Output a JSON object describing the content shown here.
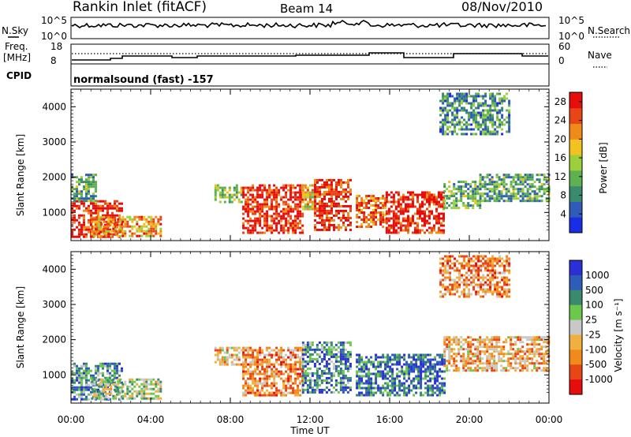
{
  "header": {
    "station": "Rankin Inlet (fitACF)",
    "beam": "Beam 14",
    "date": "08/Nov/2010"
  },
  "noise_panel": {
    "left_label": "N.Sky",
    "right_label": "N.Search",
    "left_ticks": [
      "10^5",
      "10^0"
    ],
    "right_ticks": [
      "10^5",
      "10^0"
    ]
  },
  "freq_panel": {
    "left_label_1": "Freq.",
    "left_label_2": "[MHz]",
    "right_label": "Nave",
    "left_ticks": [
      "18",
      "8"
    ],
    "right_ticks": [
      "60",
      "0"
    ],
    "cpid_label": "CPID",
    "cpid_text": "normalsound (fast) -157"
  },
  "colors": {
    "power_scale": [
      "#1a2de6",
      "#2f5cb8",
      "#3a8a6e",
      "#5fb04f",
      "#9bd03a",
      "#f2c21e",
      "#f08a1a",
      "#e84616",
      "#e60d0d"
    ],
    "velocity_scale": [
      "#2a2fd6",
      "#2f5cb8",
      "#3a8a6e",
      "#6cc84a",
      "#c8c8c8",
      "#f0b040",
      "#f08a1a",
      "#e84616",
      "#e60d0d"
    ]
  },
  "chart_data": [
    {
      "type": "heatmap",
      "name_label": "power",
      "ylabel": "Slant Range [km]",
      "xlabel": "",
      "y_ticks": [
        "1000",
        "2000",
        "3000",
        "4000"
      ],
      "y_tick_values": [
        1000,
        2000,
        3000,
        4000
      ],
      "ylim": [
        200,
        4500
      ],
      "x_ticks": [
        "00:00",
        "04:00",
        "08:00",
        "12:00",
        "16:00",
        "20:00",
        "00:00"
      ],
      "x_tick_values": [
        0,
        4,
        8,
        12,
        16,
        20,
        24
      ],
      "xlim": [
        0,
        24
      ],
      "colorbar": {
        "label": "Power [dB]",
        "ticks": [
          "4",
          "8",
          "12",
          "16",
          "20",
          "24",
          "28"
        ],
        "tick_values": [
          4,
          8,
          12,
          16,
          20,
          24,
          28
        ],
        "range": [
          0,
          30
        ]
      },
      "regions": [
        {
          "t0": 0.0,
          "t1": 2.6,
          "r0": 300,
          "r1": 1350,
          "level": 0.9
        },
        {
          "t0": 0.0,
          "t1": 1.2,
          "r0": 1300,
          "r1": 2100,
          "level": 0.35
        },
        {
          "t0": 1.0,
          "t1": 4.5,
          "r0": 300,
          "r1": 900,
          "level": 0.7
        },
        {
          "t0": 7.2,
          "t1": 8.6,
          "r0": 1300,
          "r1": 1800,
          "level": 0.45
        },
        {
          "t0": 8.6,
          "t1": 11.6,
          "r0": 400,
          "r1": 1800,
          "level": 0.92
        },
        {
          "t0": 11.6,
          "t1": 12.2,
          "r0": 1100,
          "r1": 1800,
          "level": 0.6
        },
        {
          "t0": 12.2,
          "t1": 14.0,
          "r0": 500,
          "r1": 1950,
          "level": 0.9
        },
        {
          "t0": 14.3,
          "t1": 15.8,
          "r0": 600,
          "r1": 1500,
          "level": 0.8
        },
        {
          "t0": 15.8,
          "t1": 18.7,
          "r0": 400,
          "r1": 1600,
          "level": 0.95
        },
        {
          "t0": 18.7,
          "t1": 20.5,
          "r0": 1100,
          "r1": 1900,
          "level": 0.4
        },
        {
          "t0": 20.5,
          "t1": 24.0,
          "r0": 1300,
          "r1": 2100,
          "level": 0.35
        },
        {
          "t0": 18.5,
          "t1": 22.0,
          "r0": 3200,
          "r1": 4400,
          "level": 0.3
        }
      ]
    },
    {
      "type": "heatmap",
      "name_label": "velocity",
      "ylabel": "Slant Range [km]",
      "xlabel": "Time UT",
      "y_ticks": [
        "1000",
        "2000",
        "3000",
        "4000"
      ],
      "y_tick_values": [
        1000,
        2000,
        3000,
        4000
      ],
      "ylim": [
        200,
        4500
      ],
      "x_ticks": [
        "00:00",
        "04:00",
        "08:00",
        "12:00",
        "16:00",
        "20:00",
        "00:00"
      ],
      "x_tick_values": [
        0,
        4,
        8,
        12,
        16,
        20,
        24
      ],
      "xlim": [
        0,
        24
      ],
      "colorbar": {
        "label": "Velocity [m s⁻¹]",
        "ticks": [
          "1000",
          "500",
          "100",
          "25",
          "-25",
          "-100",
          "-500",
          "-1000"
        ],
        "tick_values": [
          8,
          7,
          6,
          5,
          4,
          3,
          2,
          1
        ]
      },
      "regions": [
        {
          "t0": 0.0,
          "t1": 2.6,
          "r0": 300,
          "r1": 1350,
          "level": 0.3
        },
        {
          "t0": 1.0,
          "t1": 4.5,
          "r0": 300,
          "r1": 900,
          "level": 0.45
        },
        {
          "t0": 7.2,
          "t1": 8.6,
          "r0": 1300,
          "r1": 1800,
          "level": 0.6
        },
        {
          "t0": 8.6,
          "t1": 11.6,
          "r0": 400,
          "r1": 1800,
          "level": 0.7
        },
        {
          "t0": 11.6,
          "t1": 14.0,
          "r0": 500,
          "r1": 1950,
          "level": 0.25
        },
        {
          "t0": 14.3,
          "t1": 18.7,
          "r0": 400,
          "r1": 1600,
          "level": 0.2
        },
        {
          "t0": 18.7,
          "t1": 24.0,
          "r0": 1100,
          "r1": 2100,
          "level": 0.65
        },
        {
          "t0": 18.5,
          "t1": 22.0,
          "r0": 3200,
          "r1": 4400,
          "level": 0.72
        }
      ]
    }
  ]
}
